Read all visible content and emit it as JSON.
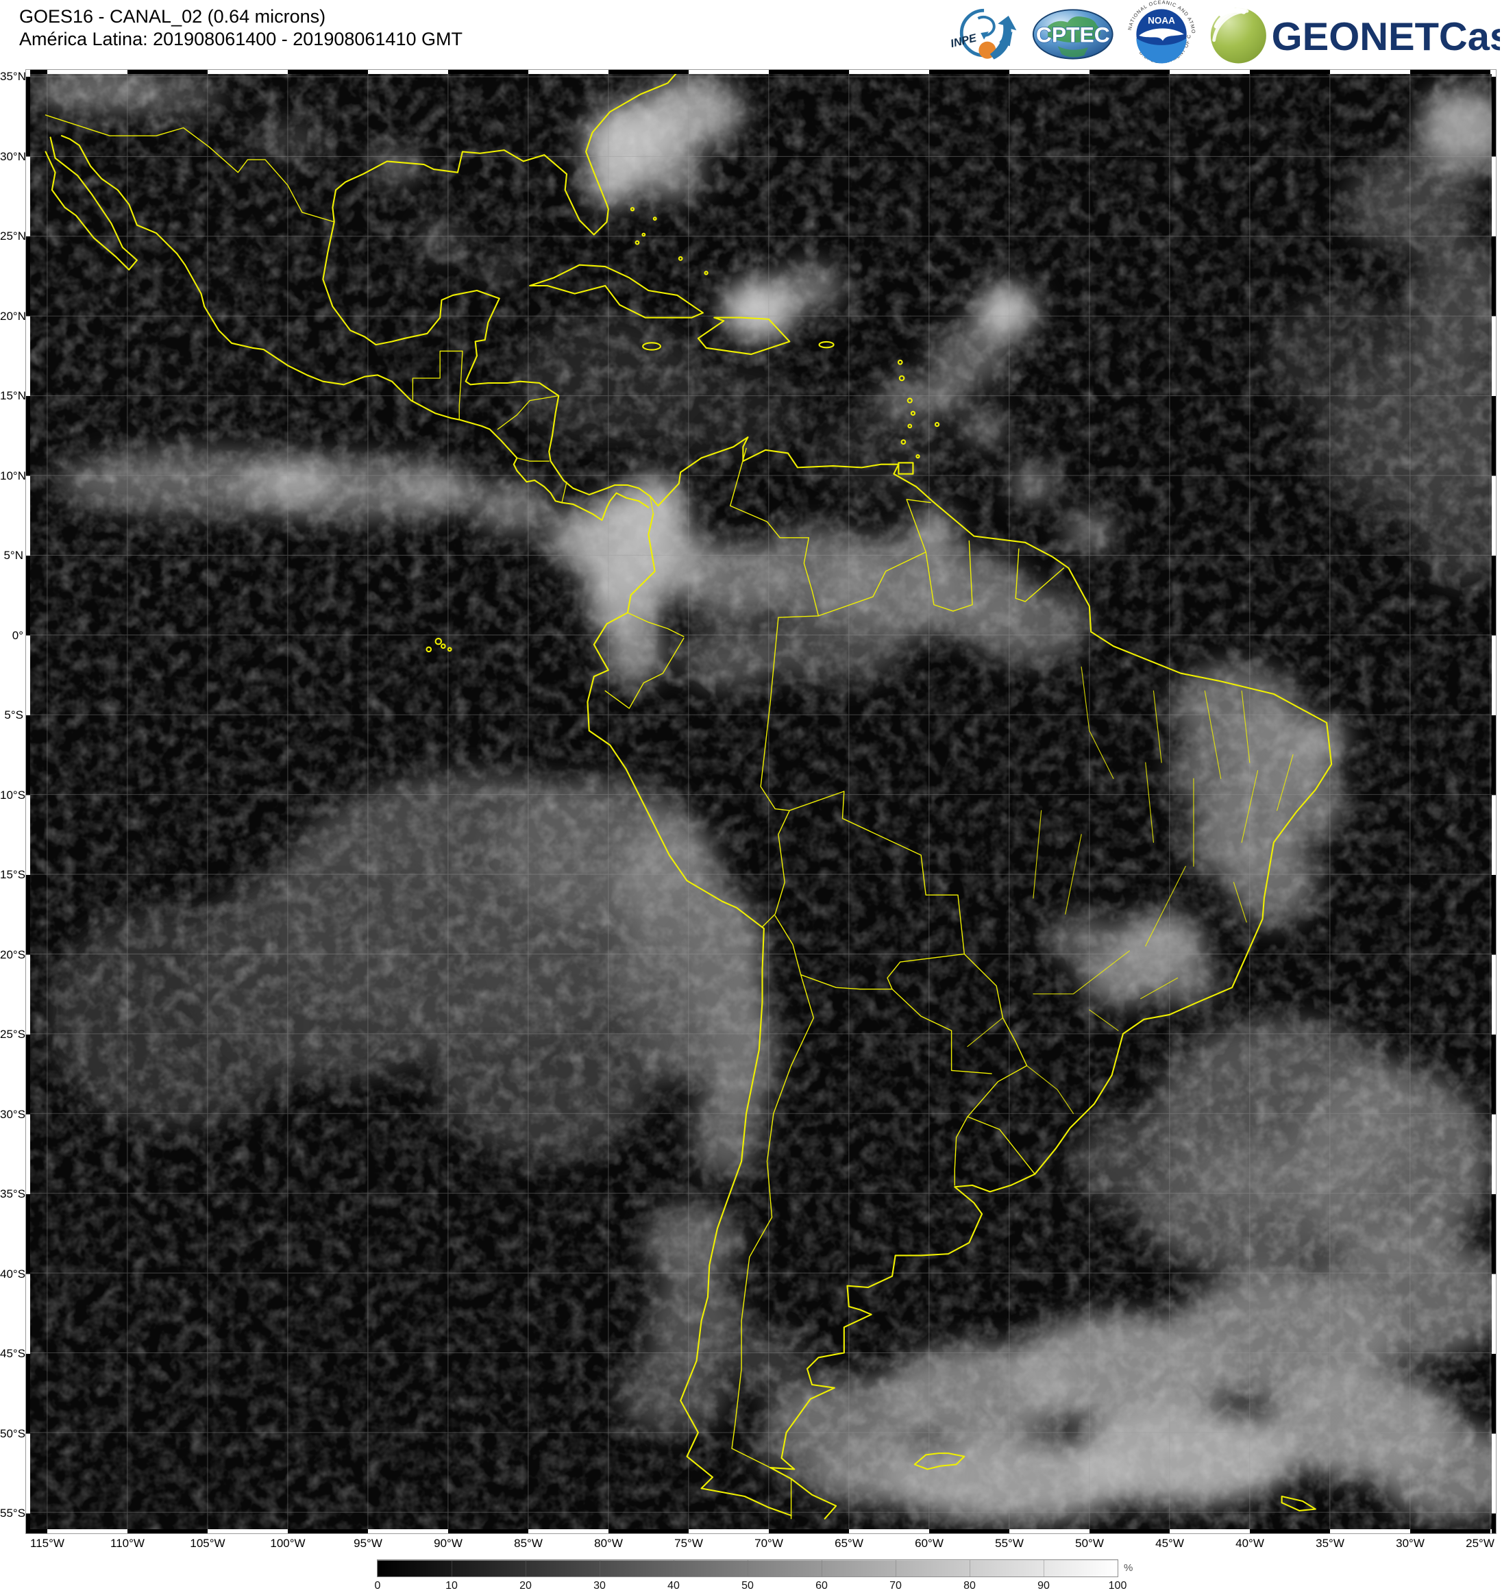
{
  "header": {
    "title_line1": "GOES16 - CANAL_02 (0.64 microns)",
    "title_line2": "América Latina: 201908061400 - 201908061410 GMT"
  },
  "logos": {
    "inpe_label": "INPE",
    "cptec_label": "CPTEC",
    "noaa_label": "NOAA",
    "noaa_ring_top": "NATIONAL OCEANIC AND ATMOSPHERIC ADMINISTRATION",
    "noaa_ring_bottom": "U.S. DEPARTMENT OF COMMERCE",
    "geonetcast_label": "GEONETCast"
  },
  "map": {
    "lat_labels": [
      "35°N",
      "30°N",
      "25°N",
      "20°N",
      "15°N",
      "10°N",
      "5°N",
      "0°",
      "5°S",
      "10°S",
      "15°S",
      "20°S",
      "25°S",
      "30°S",
      "35°S",
      "40°S",
      "45°S",
      "50°S",
      "55°S"
    ],
    "lon_labels": [
      "115°W",
      "110°W",
      "105°W",
      "100°W",
      "95°W",
      "90°W",
      "85°W",
      "80°W",
      "75°W",
      "70°W",
      "65°W",
      "60°W",
      "55°W",
      "50°W",
      "45°W",
      "40°W",
      "35°W",
      "30°W",
      "25°W"
    ],
    "border_color": "#f0f000"
  },
  "colorbar": {
    "ticks": [
      "0",
      "10",
      "20",
      "30",
      "40",
      "50",
      "60",
      "70",
      "80",
      "90",
      "100"
    ],
    "unit": "%",
    "scale_min": 0,
    "scale_max": 100
  },
  "colors": {
    "coastline_yellow": "#f0f000",
    "geonetcast_navy": "#17356b",
    "geonetcast_green": "#8fae3e",
    "inpe_blue": "#2a77ad",
    "inpe_orange": "#e8862c",
    "noaa_blue": "#14459c",
    "noaa_lightblue": "#2f86d6"
  }
}
